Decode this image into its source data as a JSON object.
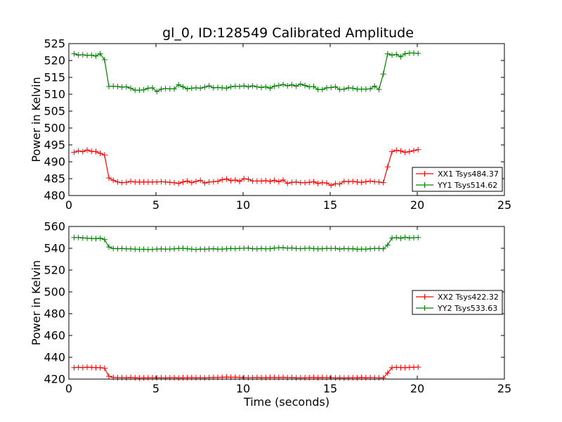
{
  "title": "gl_0, ID:128549 Calibrated Amplitude",
  "chart_data": [
    {
      "type": "line",
      "ylabel": "Power in Kelvin",
      "xlabel": "",
      "xlim": [
        0,
        25
      ],
      "ylim": [
        480,
        525
      ],
      "xticks": [
        0,
        5,
        10,
        15,
        20,
        25
      ],
      "yticks": [
        480,
        485,
        490,
        495,
        500,
        505,
        510,
        515,
        520,
        525
      ],
      "legend_position": "lower-right",
      "grid": false,
      "series": [
        {
          "name": "XX1 Tsys484.37",
          "color": "#ff0000",
          "x": [
            0.3,
            0.55,
            0.8,
            1.05,
            1.3,
            1.55,
            1.8,
            2.05,
            2.3,
            2.55,
            2.8,
            3.05,
            3.3,
            3.55,
            3.8,
            4.05,
            4.3,
            4.55,
            4.8,
            5.05,
            5.3,
            5.55,
            5.8,
            6.05,
            6.3,
            6.55,
            6.8,
            7.05,
            7.3,
            7.55,
            7.8,
            8.05,
            8.3,
            8.55,
            8.8,
            9.05,
            9.3,
            9.55,
            9.8,
            10.05,
            10.3,
            10.55,
            10.8,
            11.05,
            11.3,
            11.55,
            11.8,
            12.05,
            12.3,
            12.55,
            12.8,
            13.05,
            13.3,
            13.55,
            13.8,
            14.05,
            14.3,
            14.55,
            14.8,
            15.05,
            15.3,
            15.55,
            15.8,
            16.05,
            16.3,
            16.55,
            16.8,
            17.05,
            17.3,
            17.55,
            17.8,
            18.05,
            18.3,
            18.55,
            18.8,
            19.05,
            19.3,
            19.55,
            19.8,
            20.05
          ],
          "values": [
            492.8,
            493.2,
            493.0,
            493.5,
            493.1,
            493.0,
            492.5,
            492.0,
            485.2,
            484.5,
            484.0,
            483.8,
            483.9,
            484.2,
            484.0,
            484.0,
            484.0,
            484.0,
            484.0,
            484.0,
            484.1,
            484.0,
            483.9,
            483.8,
            483.6,
            484.0,
            484.3,
            483.8,
            484.2,
            484.5,
            483.7,
            484.0,
            484.1,
            484.2,
            484.7,
            484.9,
            484.4,
            484.6,
            484.2,
            485.0,
            484.8,
            484.3,
            484.3,
            484.3,
            484.4,
            484.2,
            484.5,
            484.1,
            484.6,
            483.6,
            483.9,
            484.0,
            483.8,
            483.8,
            483.9,
            484.1,
            483.6,
            483.8,
            483.7,
            483.0,
            483.5,
            483.4,
            484.2,
            484.1,
            484.2,
            484.0,
            483.9,
            484.1,
            484.3,
            484.1,
            484.0,
            483.8,
            488.5,
            493.0,
            493.4,
            493.2,
            492.8,
            493.0,
            493.3,
            493.6
          ]
        },
        {
          "name": "YY1 Tsys514.62",
          "color": "#008000",
          "x": [
            0.3,
            0.55,
            0.8,
            1.05,
            1.3,
            1.55,
            1.8,
            2.05,
            2.3,
            2.55,
            2.8,
            3.05,
            3.3,
            3.55,
            3.8,
            4.05,
            4.3,
            4.55,
            4.8,
            5.05,
            5.3,
            5.55,
            5.8,
            6.05,
            6.3,
            6.55,
            6.8,
            7.05,
            7.3,
            7.55,
            7.8,
            8.05,
            8.3,
            8.55,
            8.8,
            9.05,
            9.3,
            9.55,
            9.8,
            10.05,
            10.3,
            10.55,
            10.8,
            11.05,
            11.3,
            11.55,
            11.8,
            12.05,
            12.3,
            12.55,
            12.8,
            13.05,
            13.3,
            13.55,
            13.8,
            14.05,
            14.3,
            14.55,
            14.8,
            15.05,
            15.3,
            15.55,
            15.8,
            16.05,
            16.3,
            16.55,
            16.8,
            17.05,
            17.3,
            17.55,
            17.8,
            18.05,
            18.3,
            18.55,
            18.8,
            19.05,
            19.3,
            19.55,
            19.8,
            20.05
          ],
          "values": [
            522.0,
            521.6,
            521.7,
            521.5,
            521.6,
            521.3,
            522.0,
            520.2,
            512.3,
            512.4,
            512.3,
            512.1,
            512.2,
            511.8,
            511.2,
            511.2,
            511.3,
            511.8,
            511.9,
            510.8,
            511.5,
            511.7,
            511.6,
            511.6,
            512.8,
            512.2,
            511.6,
            511.8,
            511.9,
            511.8,
            512.1,
            512.5,
            511.9,
            512.0,
            511.9,
            511.8,
            512.2,
            512.4,
            512.3,
            512.5,
            512.2,
            512.5,
            512.2,
            512.0,
            512.2,
            511.8,
            512.4,
            512.6,
            512.9,
            512.5,
            512.8,
            512.4,
            513.0,
            512.6,
            512.2,
            512.3,
            511.4,
            511.4,
            511.9,
            512.0,
            512.2,
            511.4,
            511.5,
            511.9,
            511.8,
            511.5,
            511.5,
            511.5,
            511.6,
            512.4,
            511.4,
            516.0,
            522.0,
            521.6,
            521.8,
            521.1,
            522.0,
            522.2,
            522.2,
            522.1
          ]
        }
      ]
    },
    {
      "type": "line",
      "ylabel": "Power in Kelvin",
      "xlabel": "Time (seconds)",
      "xlim": [
        0,
        25
      ],
      "ylim": [
        420,
        560
      ],
      "xticks": [
        0,
        5,
        10,
        15,
        20,
        25
      ],
      "yticks": [
        420,
        440,
        460,
        480,
        500,
        520,
        540,
        560
      ],
      "legend_position": "center-right",
      "grid": false,
      "series": [
        {
          "name": "XX2 Tsys422.32",
          "color": "#ff0000",
          "x": [
            0.3,
            0.55,
            0.8,
            1.05,
            1.3,
            1.55,
            1.8,
            2.05,
            2.3,
            2.55,
            2.8,
            3.05,
            3.3,
            3.55,
            3.8,
            4.05,
            4.3,
            4.55,
            4.8,
            5.05,
            5.3,
            5.55,
            5.8,
            6.05,
            6.3,
            6.55,
            6.8,
            7.05,
            7.3,
            7.55,
            7.8,
            8.05,
            8.3,
            8.55,
            8.8,
            9.05,
            9.3,
            9.55,
            9.8,
            10.05,
            10.3,
            10.55,
            10.8,
            11.05,
            11.3,
            11.55,
            11.8,
            12.05,
            12.3,
            12.55,
            12.8,
            13.05,
            13.3,
            13.55,
            13.8,
            14.05,
            14.3,
            14.55,
            14.8,
            15.05,
            15.3,
            15.55,
            15.8,
            16.05,
            16.3,
            16.55,
            16.8,
            17.05,
            17.3,
            17.55,
            17.8,
            18.05,
            18.3,
            18.55,
            18.8,
            19.05,
            19.3,
            19.55,
            19.8,
            20.05
          ],
          "values": [
            430.5,
            430.8,
            430.6,
            430.9,
            430.7,
            430.5,
            430.5,
            430.0,
            422.6,
            421.6,
            421.3,
            421.4,
            421.2,
            421.5,
            421.2,
            421.0,
            421.1,
            421.2,
            421.3,
            421.1,
            421.3,
            421.1,
            421.2,
            421.4,
            421.0,
            421.3,
            421.2,
            421.4,
            421.2,
            421.3,
            421.1,
            421.4,
            421.6,
            421.5,
            421.7,
            421.9,
            421.6,
            421.8,
            421.5,
            421.4,
            421.3,
            421.4,
            421.6,
            421.3,
            421.4,
            421.5,
            421.6,
            421.4,
            421.7,
            421.3,
            421.5,
            421.1,
            421.3,
            421.2,
            421.4,
            421.6,
            421.2,
            421.5,
            421.3,
            421.4,
            421.1,
            421.2,
            421.0,
            421.2,
            421.3,
            421.1,
            421.5,
            421.2,
            421.4,
            421.3,
            421.2,
            421.1,
            425.6,
            430.5,
            430.8,
            430.6,
            430.5,
            430.7,
            430.9,
            431.0
          ]
        },
        {
          "name": "YY2 Tsys533.63",
          "color": "#008000",
          "x": [
            0.3,
            0.55,
            0.8,
            1.05,
            1.3,
            1.55,
            1.8,
            2.05,
            2.3,
            2.55,
            2.8,
            3.05,
            3.3,
            3.55,
            3.8,
            4.05,
            4.3,
            4.55,
            4.8,
            5.05,
            5.3,
            5.55,
            5.8,
            6.05,
            6.3,
            6.55,
            6.8,
            7.05,
            7.3,
            7.55,
            7.8,
            8.05,
            8.3,
            8.55,
            8.8,
            9.05,
            9.3,
            9.55,
            9.8,
            10.05,
            10.3,
            10.55,
            10.8,
            11.05,
            11.3,
            11.55,
            11.8,
            12.05,
            12.3,
            12.55,
            12.8,
            13.05,
            13.3,
            13.55,
            13.8,
            14.05,
            14.3,
            14.55,
            14.8,
            15.05,
            15.3,
            15.55,
            15.8,
            16.05,
            16.3,
            16.55,
            16.8,
            17.05,
            17.3,
            17.55,
            17.8,
            18.05,
            18.3,
            18.55,
            18.8,
            19.05,
            19.3,
            19.55,
            19.8,
            20.05
          ],
          "values": [
            549.8,
            550.0,
            549.5,
            549.3,
            549.0,
            548.8,
            549.3,
            548.0,
            541.2,
            539.8,
            539.6,
            539.8,
            539.5,
            539.4,
            539.2,
            539.0,
            539.1,
            538.9,
            539.0,
            539.2,
            539.4,
            539.2,
            539.3,
            539.5,
            539.8,
            540.0,
            539.6,
            539.2,
            538.9,
            539.3,
            539.1,
            539.4,
            539.6,
            539.2,
            539.3,
            539.5,
            539.8,
            539.6,
            539.9,
            540.0,
            540.2,
            539.6,
            539.4,
            539.8,
            539.5,
            539.6,
            540.2,
            540.4,
            540.6,
            540.1,
            540.3,
            539.8,
            539.6,
            539.9,
            540.1,
            539.7,
            539.4,
            539.6,
            539.9,
            539.8,
            540.0,
            539.2,
            539.8,
            539.5,
            539.6,
            539.1,
            539.3,
            539.2,
            539.6,
            539.8,
            539.9,
            539.5,
            543.0,
            549.5,
            549.8,
            549.2,
            550.1,
            549.4,
            549.7,
            549.9
          ]
        }
      ]
    }
  ]
}
